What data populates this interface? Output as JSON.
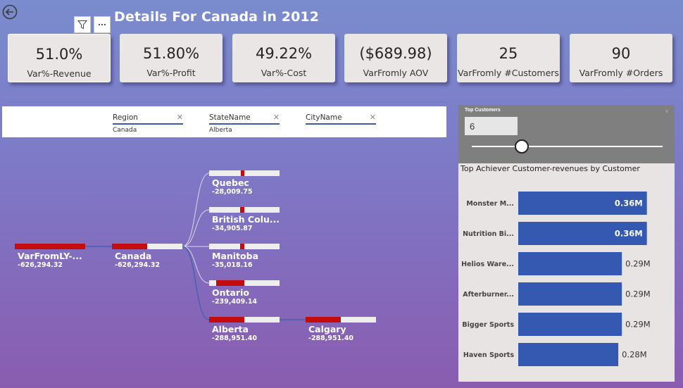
{
  "header": {
    "title": "Details For Canada in 2012"
  },
  "kpis": [
    {
      "value": "51.0%",
      "label": "Var%-Revenue"
    },
    {
      "value": "51.80%",
      "label": "Var%-Profit"
    },
    {
      "value": "49.22%",
      "label": "Var%-Cost"
    },
    {
      "value": "($689.98)",
      "label": "VarFromly AOV"
    },
    {
      "value": "25",
      "label": "VarFromly #Customers"
    },
    {
      "value": "90",
      "label": "VarFromly #Orders"
    }
  ],
  "filters": [
    {
      "name": "Region",
      "value": "Canada"
    },
    {
      "name": "StateName",
      "value": "Alberta"
    },
    {
      "name": "CityName",
      "value": ""
    }
  ],
  "tree": {
    "root": {
      "label": "VarFromLY-...",
      "value": "-626,294.32"
    },
    "level1": {
      "label": "Canada",
      "value": "-626,294.32"
    },
    "states": [
      {
        "label": "Quebec",
        "value": "-28,009.75"
      },
      {
        "label": "British Colu...",
        "value": "-34,905.87"
      },
      {
        "label": "Manitoba",
        "value": "-35,018.16"
      },
      {
        "label": "Ontario",
        "value": "-239,409.14"
      },
      {
        "label": "Alberta",
        "value": "-288,951.40"
      }
    ],
    "city": {
      "label": "Calgary",
      "value": "-288,951.40"
    }
  },
  "slicer": {
    "title": "Top Customers",
    "value": "6"
  },
  "chart_data": {
    "type": "bar",
    "orientation": "horizontal",
    "title": "Top Achiever Customer-revenues by Customer",
    "categories": [
      "Monster M...",
      "Nutrition Bi...",
      "Helios Ware...",
      "Afterburner...",
      "Bigger Sports",
      "Haven Sports"
    ],
    "values": [
      0.36,
      0.36,
      0.29,
      0.29,
      0.29,
      0.28
    ],
    "data_labels": [
      "0.36M",
      "0.36M",
      "0.29M",
      "0.29M",
      "0.29M",
      "0.28M"
    ],
    "bar_color": "#3558b0",
    "xlim": [
      0,
      0.4
    ]
  },
  "colors": {
    "accent_red": "#c40c0c",
    "bar_blue": "#3558b0"
  }
}
